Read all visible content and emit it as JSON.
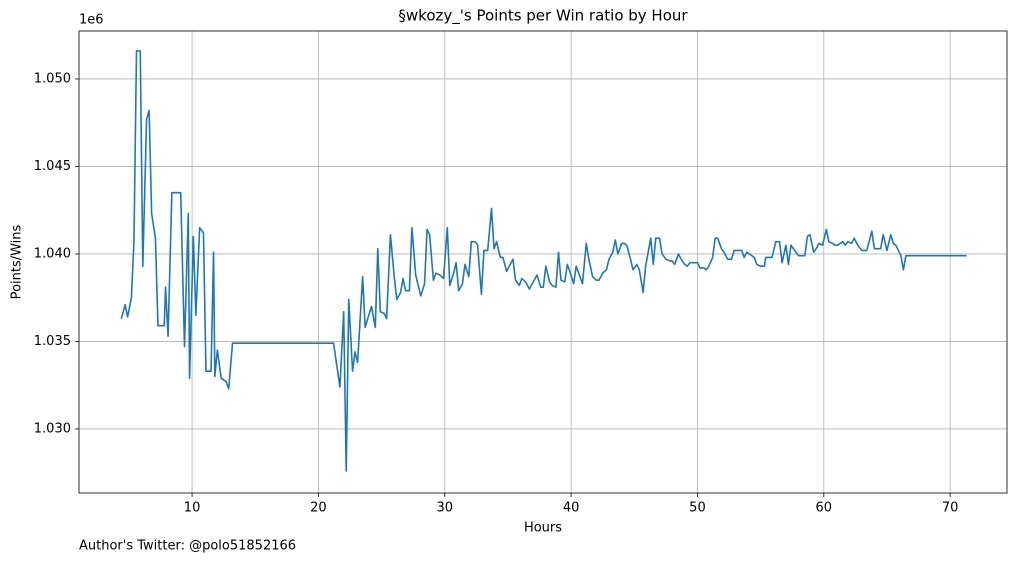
{
  "chart_data": {
    "type": "line",
    "title": "§wkozy_'s Points per Win ratio by Hour",
    "xlabel": "Hours",
    "ylabel": "Points/Wins",
    "y_offset_label": "1e6",
    "footnote": "Author's Twitter: @polo51852166",
    "color": "#1f77b4",
    "grid": true,
    "xlim": [
      1.05,
      74.5
    ],
    "ylim": [
      1.02634,
      1.05274
    ],
    "xticks": [
      10,
      20,
      30,
      40,
      50,
      60,
      70
    ],
    "yticks": [
      {
        "value": 1.03,
        "label": "1.030"
      },
      {
        "value": 1.035,
        "label": "1.035"
      },
      {
        "value": 1.04,
        "label": "1.040"
      },
      {
        "value": 1.045,
        "label": "1.045"
      },
      {
        "value": 1.05,
        "label": "1.050"
      }
    ],
    "x": [
      4.4,
      4.7,
      4.9,
      5.2,
      5.4,
      5.6,
      5.9,
      6.1,
      6.4,
      6.6,
      6.8,
      7.1,
      7.3,
      7.8,
      7.9,
      8.1,
      8.4,
      9.1,
      9.4,
      9.7,
      9.8,
      10.1,
      10.3,
      10.6,
      10.9,
      11.1,
      11.5,
      11.7,
      11.8,
      12.0,
      12.3,
      12.7,
      12.9,
      13.2,
      21.2,
      21.5,
      21.7,
      22.0,
      22.2,
      22.4,
      22.7,
      22.9,
      23.1,
      23.5,
      23.7,
      23.9,
      24.2,
      24.5,
      24.7,
      24.9,
      25.2,
      25.4,
      25.7,
      26.0,
      26.2,
      26.5,
      26.7,
      26.9,
      27.2,
      27.4,
      27.7,
      27.9,
      28.1,
      28.4,
      28.6,
      28.8,
      29.1,
      29.3,
      29.6,
      29.9,
      30.2,
      30.4,
      30.7,
      30.9,
      31.1,
      31.4,
      31.6,
      31.9,
      32.1,
      32.4,
      32.6,
      32.9,
      33.1,
      33.4,
      33.7,
      33.9,
      34.1,
      34.4,
      34.6,
      34.9,
      35.1,
      35.4,
      35.6,
      35.9,
      36.1,
      36.4,
      36.7,
      37.0,
      37.3,
      37.6,
      37.8,
      38.0,
      38.3,
      38.5,
      38.8,
      39.0,
      39.2,
      39.5,
      39.7,
      39.9,
      40.2,
      40.4,
      40.6,
      40.9,
      41.2,
      41.4,
      41.7,
      42.0,
      42.2,
      42.5,
      42.8,
      43.0,
      43.3,
      43.5,
      43.7,
      44.0,
      44.2,
      44.4,
      44.7,
      44.9,
      45.2,
      45.4,
      45.7,
      45.9,
      46.3,
      46.5,
      46.7,
      47.0,
      47.2,
      47.5,
      47.8,
      48.0,
      48.2,
      48.5,
      48.7,
      49.0,
      49.2,
      49.4,
      49.7,
      50.0,
      50.2,
      50.5,
      50.7,
      50.9,
      51.2,
      51.4,
      51.6,
      51.9,
      52.1,
      52.4,
      52.7,
      52.9,
      53.2,
      53.5,
      53.7,
      53.9,
      54.3,
      54.5,
      54.7,
      55.0,
      55.3,
      55.4,
      55.7,
      55.9,
      56.2,
      56.5,
      56.7,
      57.0,
      57.2,
      57.4,
      57.7,
      58.0,
      58.2,
      58.5,
      58.7,
      58.9,
      59.2,
      59.4,
      59.6,
      59.9,
      60.2,
      60.4,
      60.7,
      60.9,
      61.1,
      61.5,
      61.7,
      61.9,
      62.2,
      62.4,
      62.7,
      63.0,
      63.2,
      63.4,
      63.8,
      64.0,
      64.2,
      64.5,
      64.7,
      65.0,
      65.3,
      65.5,
      65.7,
      66.1,
      66.3,
      66.5,
      71.3
    ],
    "values": [
      1.0363,
      1.0371,
      1.0364,
      1.0375,
      1.0407,
      1.0516,
      1.0516,
      1.0393,
      1.0477,
      1.0482,
      1.0423,
      1.0409,
      1.0359,
      1.0359,
      1.0381,
      1.0353,
      1.0435,
      1.0435,
      1.0347,
      1.0423,
      1.0329,
      1.041,
      1.0365,
      1.0415,
      1.0412,
      1.0333,
      1.0333,
      1.0401,
      1.033,
      1.0345,
      1.0329,
      1.0327,
      1.0323,
      1.0349,
      1.0349,
      1.0334,
      1.0324,
      1.0367,
      1.0276,
      1.0374,
      1.0333,
      1.0344,
      1.0338,
      1.0387,
      1.0358,
      1.0363,
      1.037,
      1.0358,
      1.0403,
      1.0367,
      1.0366,
      1.0363,
      1.0411,
      1.0387,
      1.0374,
      1.0378,
      1.0386,
      1.0379,
      1.0379,
      1.0415,
      1.0388,
      1.0382,
      1.0376,
      1.0383,
      1.0414,
      1.0411,
      1.0385,
      1.0389,
      1.0388,
      1.0386,
      1.0415,
      1.0382,
      1.0389,
      1.0395,
      1.0379,
      1.0383,
      1.0394,
      1.0387,
      1.0407,
      1.0407,
      1.0405,
      1.0377,
      1.0402,
      1.0402,
      1.0426,
      1.0403,
      1.0407,
      1.0398,
      1.0398,
      1.039,
      1.0393,
      1.0397,
      1.0385,
      1.0382,
      1.0386,
      1.0384,
      1.038,
      1.0384,
      1.0388,
      1.0381,
      1.0381,
      1.0393,
      1.0384,
      1.0382,
      1.0381,
      1.0401,
      1.0385,
      1.0384,
      1.0394,
      1.039,
      1.0383,
      1.0393,
      1.0389,
      1.0383,
      1.0406,
      1.0397,
      1.0387,
      1.0385,
      1.0385,
      1.0389,
      1.0391,
      1.0397,
      1.0401,
      1.0408,
      1.04,
      1.0406,
      1.0406,
      1.0405,
      1.0397,
      1.0391,
      1.0394,
      1.0391,
      1.0378,
      1.0393,
      1.0409,
      1.0394,
      1.0409,
      1.0409,
      1.04,
      1.0397,
      1.0396,
      1.0396,
      1.0394,
      1.04,
      1.0397,
      1.0394,
      1.0393,
      1.0395,
      1.0395,
      1.0395,
      1.0392,
      1.0392,
      1.0391,
      1.0393,
      1.0398,
      1.0409,
      1.0409,
      1.0403,
      1.0401,
      1.0397,
      1.0397,
      1.0402,
      1.0402,
      1.0402,
      1.0398,
      1.0401,
      1.0399,
      1.0398,
      1.0394,
      1.0393,
      1.0393,
      1.0398,
      1.0398,
      1.0398,
      1.0407,
      1.0407,
      1.0395,
      1.0405,
      1.0394,
      1.0405,
      1.0402,
      1.0399,
      1.0399,
      1.0399,
      1.041,
      1.0411,
      1.0401,
      1.0403,
      1.0406,
      1.0405,
      1.0414,
      1.0407,
      1.0406,
      1.0405,
      1.0405,
      1.0407,
      1.0405,
      1.0407,
      1.0406,
      1.0409,
      1.0405,
      1.0402,
      1.0402,
      1.0402,
      1.0413,
      1.0403,
      1.0403,
      1.0403,
      1.0411,
      1.0402,
      1.0411,
      1.0406,
      1.0405,
      1.0399,
      1.0391,
      1.0399,
      1.0399
    ]
  }
}
